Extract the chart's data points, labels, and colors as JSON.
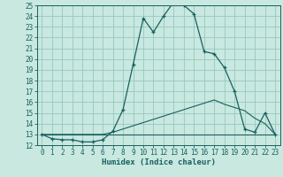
{
  "xlabel": "Humidex (Indice chaleur)",
  "bg_color": "#c8e8e0",
  "grid_color": "#96c8c0",
  "line_color": "#1a6060",
  "xlim": [
    -0.5,
    23.5
  ],
  "ylim": [
    12,
    25
  ],
  "yticks": [
    12,
    13,
    14,
    15,
    16,
    17,
    18,
    19,
    20,
    21,
    22,
    23,
    24,
    25
  ],
  "xticks": [
    0,
    1,
    2,
    3,
    4,
    5,
    6,
    7,
    8,
    9,
    10,
    11,
    12,
    13,
    14,
    15,
    16,
    17,
    18,
    19,
    20,
    21,
    22,
    23
  ],
  "series1_x": [
    0,
    1,
    2,
    3,
    4,
    5,
    6,
    7,
    8,
    9,
    10,
    11,
    12,
    13,
    14,
    15,
    16,
    17,
    18,
    19,
    20,
    21,
    22,
    23
  ],
  "series1_y": [
    13.0,
    12.6,
    12.5,
    12.5,
    12.3,
    12.3,
    12.5,
    13.3,
    15.3,
    19.5,
    23.8,
    22.5,
    24.0,
    25.3,
    25.0,
    24.2,
    20.7,
    20.5,
    19.2,
    17.0,
    13.5,
    13.2,
    15.0,
    13.0
  ],
  "series2_x": [
    0,
    1,
    2,
    3,
    4,
    5,
    6,
    7,
    8,
    9,
    10,
    11,
    12,
    13,
    14,
    15,
    16,
    17,
    18,
    19,
    20,
    21,
    22,
    23
  ],
  "series2_y": [
    13.0,
    13.0,
    13.0,
    13.0,
    13.0,
    13.0,
    13.0,
    13.0,
    13.0,
    13.0,
    13.0,
    13.0,
    13.0,
    13.0,
    13.0,
    13.0,
    13.0,
    13.0,
    13.0,
    13.0,
    13.0,
    13.0,
    13.0,
    13.0
  ],
  "series3_x": [
    0,
    1,
    2,
    3,
    4,
    5,
    6,
    7,
    8,
    9,
    10,
    11,
    12,
    13,
    14,
    15,
    16,
    17,
    18,
    19,
    20,
    21,
    22,
    23
  ],
  "series3_y": [
    13.0,
    13.0,
    13.0,
    13.0,
    13.0,
    13.0,
    13.0,
    13.2,
    13.5,
    13.8,
    14.1,
    14.4,
    14.7,
    15.0,
    15.3,
    15.6,
    15.9,
    16.2,
    15.8,
    15.5,
    15.2,
    14.5,
    14.0,
    13.0
  ],
  "tick_fontsize": 5.5,
  "xlabel_fontsize": 6.5
}
